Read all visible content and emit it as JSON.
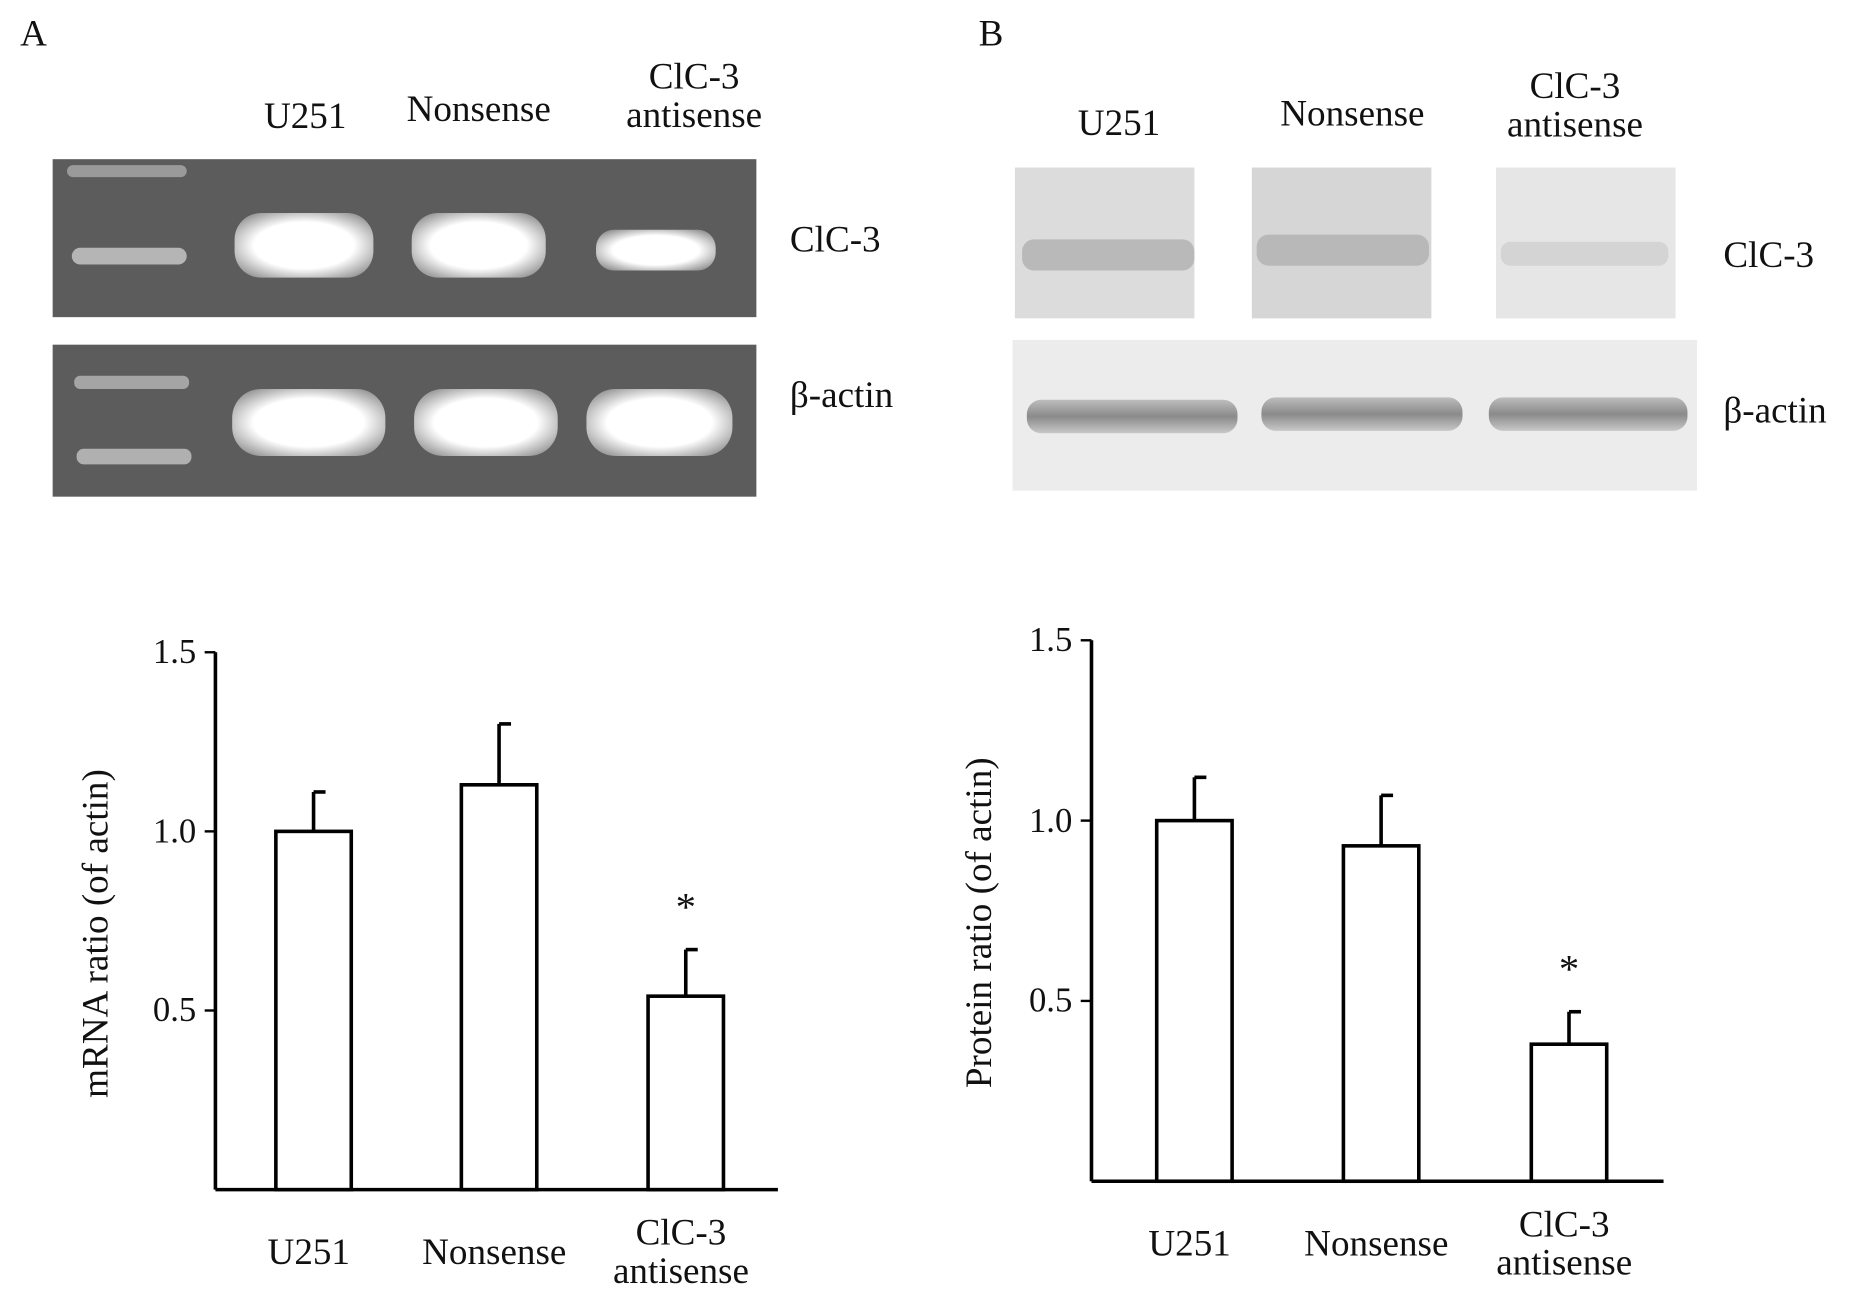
{
  "gels": [
    {
      "panel": "A",
      "lanes": [
        "U251",
        "Nonsense",
        "ClC-3 antisense"
      ],
      "bands": [
        "ClC-3",
        "β-actin"
      ]
    },
    {
      "panel": "B",
      "lanes": [
        "U251",
        "Nonsense",
        "ClC-3 antisense"
      ],
      "bands": [
        "ClC-3",
        "β-actin"
      ]
    }
  ],
  "chart_data": [
    {
      "type": "bar",
      "ylabel": "mRNA ratio (of actin)",
      "categories": [
        "U251",
        "Nonsense",
        "ClC-3 antisense"
      ],
      "values": [
        1.0,
        1.13,
        0.54
      ],
      "errors": [
        0.11,
        0.17,
        0.13
      ],
      "value_annotations": [
        null,
        null,
        "*"
      ],
      "color": "#ffffff",
      "ylim": [
        0,
        1.5
      ],
      "yticks": [
        0.5,
        {
          "value": 1,
          "label": "1.0"
        },
        1.5
      ]
    },
    {
      "type": "bar",
      "ylabel": "Protein ratio (of actin)",
      "categories": [
        "U251",
        "Nonsense",
        "ClC-3 antisense"
      ],
      "values": [
        1.0,
        0.93,
        0.38
      ],
      "errors": [
        0.12,
        0.14,
        0.09
      ],
      "value_annotations": [
        null,
        null,
        "*"
      ],
      "color": "#ffffff",
      "ylim": [
        0,
        1.5
      ],
      "yticks": [
        0.5,
        {
          "value": 1,
          "label": "1.0"
        },
        1.5
      ]
    }
  ]
}
